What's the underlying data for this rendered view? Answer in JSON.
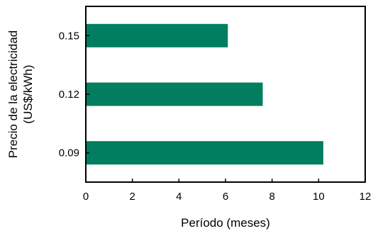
{
  "chart_data": {
    "type": "bar",
    "orientation": "horizontal",
    "categories": [
      "0.15",
      "0.12",
      "0.09"
    ],
    "values": [
      6.1,
      7.6,
      10.2
    ],
    "xlabel": "Período (meses)",
    "ylabel": [
      "Precio de la electricidad",
      "(US$/kWh)"
    ],
    "xlim": [
      0,
      12
    ],
    "xticks": [
      "0",
      "2",
      "4",
      "6",
      "8",
      "10",
      "12"
    ],
    "grid": false,
    "legend": "none",
    "bar_color": "#007e5f",
    "axis_color": "#000000"
  }
}
